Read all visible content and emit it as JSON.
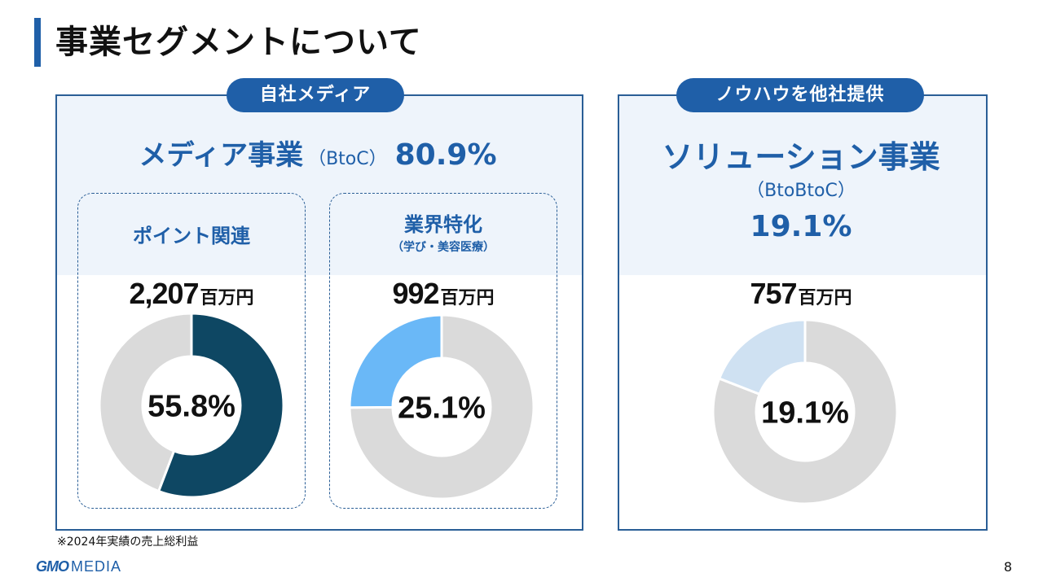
{
  "title": "事業セグメントについて",
  "left_panel": {
    "pill": "自社メディア",
    "segment_name": "メディア事業",
    "segment_sub": "（BtoC）",
    "segment_pct": "80.9%",
    "categories": [
      {
        "title": "ポイント関連",
        "subtitle": "",
        "amount": "2,207",
        "unit": "百万円",
        "pct_label": "55.8%",
        "share": 55.8,
        "highlight_color": "#0e4763"
      },
      {
        "title": "業界特化",
        "subtitle": "（学び・美容医療）",
        "amount": "992",
        "unit": "百万円",
        "pct_label": "25.1%",
        "share": 25.1,
        "highlight_color": "#6ab8f7"
      }
    ]
  },
  "right_panel": {
    "pill": "ノウハウを他社提供",
    "segment_name": "ソリューション事業",
    "segment_sub": "（BtoBtoC）",
    "segment_pct": "19.1%",
    "amount": "757",
    "unit": "百万円",
    "pct_label": "19.1%",
    "share": 19.1,
    "highlight_color": "#cfe1f2"
  },
  "colors": {
    "accent": "#1f5fa8",
    "border": "#2a5e96",
    "band": "#eef4fb",
    "donut_rest": "#dadada"
  },
  "footnote": "※2024年実績の売上総利益",
  "logo": {
    "gmo": "GMO",
    "media": "MEDIA"
  },
  "page_number": "8"
}
